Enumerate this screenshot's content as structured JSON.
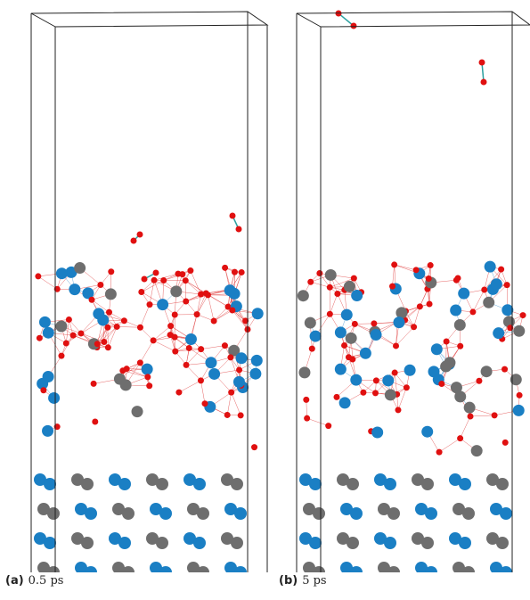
{
  "panels": [
    {
      "label": "(a)",
      "caption": "0.5 ps"
    },
    {
      "label": "(b)",
      "caption": "5 ps"
    }
  ]
}
